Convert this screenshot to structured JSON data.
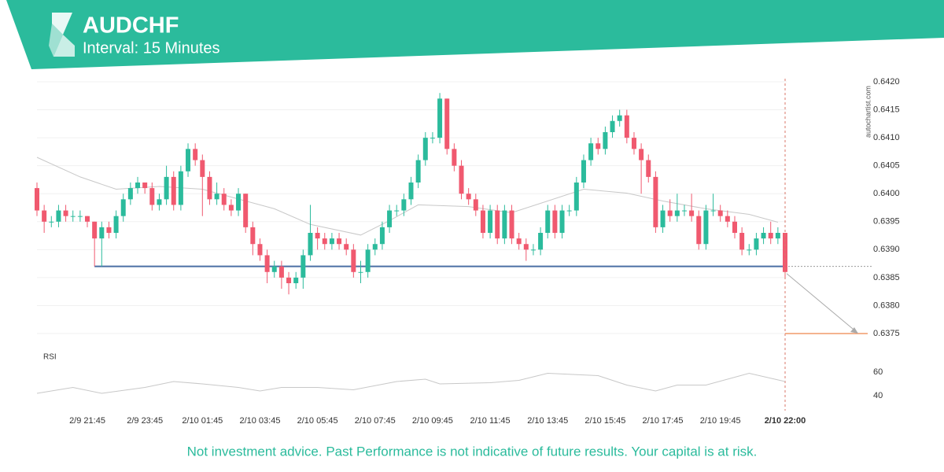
{
  "chart_data": {
    "type": "candlestick",
    "title": "AUDCHF",
    "subtitle": "Interval: 15 Minutes",
    "watermark": "autochartist.com",
    "footnote": "Not investment advice. Past Performance is not indicative of future results. Your capital is at risk.",
    "up_color": "#2bbb9c",
    "down_color": "#f0596f",
    "ylim": [
      0.6375,
      0.642
    ],
    "yticks": [
      {
        "value": 0.642,
        "label": "0.6420"
      },
      0.6415,
      {
        "value": 0.641,
        "label": "0.6410"
      },
      0.6405,
      {
        "value": 0.64,
        "label": "0.6400"
      },
      0.6395,
      {
        "value": 0.639,
        "label": "0.6390"
      },
      0.6385,
      {
        "value": 0.638,
        "label": "0.6380"
      },
      0.6375
    ],
    "grid": true,
    "categories": [
      null,
      null,
      null,
      null,
      null,
      null,
      null,
      "2/9 21:45",
      null,
      null,
      null,
      null,
      null,
      null,
      null,
      "2/9 23:45",
      null,
      null,
      null,
      null,
      null,
      null,
      null,
      "2/10 01:45",
      null,
      null,
      null,
      null,
      null,
      null,
      null,
      "2/10 03:45",
      null,
      null,
      null,
      null,
      null,
      null,
      null,
      "2/10 05:45",
      null,
      null,
      null,
      null,
      null,
      null,
      null,
      "2/10 07:45",
      null,
      null,
      null,
      null,
      null,
      null,
      null,
      "2/10 09:45",
      null,
      null,
      null,
      null,
      null,
      null,
      null,
      "2/10 11:45",
      null,
      null,
      null,
      null,
      null,
      null,
      null,
      "2/10 13:45",
      null,
      null,
      null,
      null,
      null,
      null,
      null,
      "2/10 15:45",
      null,
      null,
      null,
      null,
      null,
      null,
      null,
      "2/10 17:45",
      null,
      null,
      null,
      null,
      null,
      null,
      null,
      "2/10 19:45",
      null,
      null,
      null,
      null,
      null,
      null,
      null,
      null,
      "2/10 22:00"
    ],
    "candles": [
      [
        0.6401,
        0.6402,
        0.6396,
        0.6397
      ],
      [
        0.6397,
        0.6398,
        0.6393,
        0.6395
      ],
      [
        0.6395,
        0.6396,
        0.6394,
        0.6395
      ],
      [
        0.6395,
        0.6398,
        0.6394,
        0.6397
      ],
      [
        0.6397,
        0.6398,
        0.6395,
        0.6396
      ],
      [
        0.6396,
        0.6397,
        0.6395,
        0.6396
      ],
      [
        0.6396,
        0.6397,
        0.6395,
        0.6396
      ],
      [
        0.6396,
        0.6396,
        0.6394,
        0.6395
      ],
      [
        0.6395,
        0.6395,
        0.6387,
        0.6392
      ],
      [
        0.6392,
        0.6395,
        0.6387,
        0.6394
      ],
      [
        0.6394,
        0.6395,
        0.6392,
        0.6393
      ],
      [
        0.6393,
        0.6397,
        0.6392,
        0.6396
      ],
      [
        0.6396,
        0.64,
        0.6395,
        0.6399
      ],
      [
        0.6399,
        0.6402,
        0.6398,
        0.6401
      ],
      [
        0.6401,
        0.6403,
        0.64,
        0.6402
      ],
      [
        0.6402,
        0.6402,
        0.64,
        0.6401
      ],
      [
        0.6401,
        0.6402,
        0.6397,
        0.6398
      ],
      [
        0.6398,
        0.64,
        0.6397,
        0.6399
      ],
      [
        0.6399,
        0.6405,
        0.6398,
        0.6403
      ],
      [
        0.6403,
        0.6404,
        0.6397,
        0.6398
      ],
      [
        0.6398,
        0.6405,
        0.6397,
        0.6404
      ],
      [
        0.6404,
        0.6409,
        0.6403,
        0.6408
      ],
      [
        0.6408,
        0.6409,
        0.6405,
        0.6406
      ],
      [
        0.6406,
        0.6407,
        0.6396,
        0.6403
      ],
      [
        0.6403,
        0.6404,
        0.6398,
        0.6399
      ],
      [
        0.6399,
        0.6402,
        0.6398,
        0.64
      ],
      [
        0.64,
        0.6401,
        0.6397,
        0.6398
      ],
      [
        0.6398,
        0.6399,
        0.6396,
        0.6397
      ],
      [
        0.6397,
        0.6401,
        0.6396,
        0.64
      ],
      [
        0.64,
        0.64,
        0.6393,
        0.6394
      ],
      [
        0.6394,
        0.6395,
        0.6389,
        0.6391
      ],
      [
        0.6391,
        0.6392,
        0.6388,
        0.6389
      ],
      [
        0.6389,
        0.639,
        0.6384,
        0.6386
      ],
      [
        0.6386,
        0.6388,
        0.6385,
        0.6387
      ],
      [
        0.6387,
        0.6388,
        0.6383,
        0.6385
      ],
      [
        0.6385,
        0.6386,
        0.6382,
        0.6384
      ],
      [
        0.6384,
        0.6386,
        0.6383,
        0.6385
      ],
      [
        0.6385,
        0.639,
        0.6383,
        0.6389
      ],
      [
        0.6389,
        0.6398,
        0.6388,
        0.6393
      ],
      [
        0.6393,
        0.6394,
        0.639,
        0.6392
      ],
      [
        0.6392,
        0.6393,
        0.639,
        0.6391
      ],
      [
        0.6391,
        0.6393,
        0.639,
        0.6392
      ],
      [
        0.6392,
        0.6393,
        0.639,
        0.6391
      ],
      [
        0.6391,
        0.6392,
        0.6389,
        0.639
      ],
      [
        0.639,
        0.6391,
        0.6385,
        0.6386
      ],
      [
        0.6386,
        0.6388,
        0.6384,
        0.6386
      ],
      [
        0.6386,
        0.6391,
        0.6385,
        0.639
      ],
      [
        0.639,
        0.6392,
        0.6389,
        0.6391
      ],
      [
        0.6391,
        0.6395,
        0.639,
        0.6394
      ],
      [
        0.6394,
        0.6398,
        0.6393,
        0.6397
      ],
      [
        0.6397,
        0.6398,
        0.6396,
        0.6397
      ],
      [
        0.6397,
        0.64,
        0.6396,
        0.6399
      ],
      [
        0.6399,
        0.6403,
        0.6398,
        0.6402
      ],
      [
        0.6402,
        0.6407,
        0.6401,
        0.6406
      ],
      [
        0.6406,
        0.6411,
        0.6405,
        0.641
      ],
      [
        0.641,
        0.6411,
        0.6409,
        0.641
      ],
      [
        0.641,
        0.6418,
        0.6409,
        0.6417
      ],
      [
        0.6417,
        0.6417,
        0.6407,
        0.6408
      ],
      [
        0.6408,
        0.6409,
        0.6404,
        0.6405
      ],
      [
        0.6405,
        0.6406,
        0.6399,
        0.64
      ],
      [
        0.64,
        0.6401,
        0.6398,
        0.6399
      ],
      [
        0.6399,
        0.64,
        0.6396,
        0.6397
      ],
      [
        0.6397,
        0.6398,
        0.6392,
        0.6393
      ],
      [
        0.6393,
        0.6398,
        0.6392,
        0.6397
      ],
      [
        0.6397,
        0.6398,
        0.6391,
        0.6392
      ],
      [
        0.6392,
        0.6398,
        0.6391,
        0.6397
      ],
      [
        0.6397,
        0.6398,
        0.6391,
        0.6392
      ],
      [
        0.6392,
        0.6393,
        0.639,
        0.6391
      ],
      [
        0.6391,
        0.6392,
        0.6388,
        0.639
      ],
      [
        0.639,
        0.6391,
        0.6389,
        0.639
      ],
      [
        0.639,
        0.6394,
        0.6389,
        0.6393
      ],
      [
        0.6393,
        0.6398,
        0.6392,
        0.6397
      ],
      [
        0.6397,
        0.6398,
        0.6392,
        0.6393
      ],
      [
        0.6393,
        0.6398,
        0.6392,
        0.6397
      ],
      [
        0.6397,
        0.6398,
        0.6396,
        0.6397
      ],
      [
        0.6397,
        0.6403,
        0.6396,
        0.6402
      ],
      [
        0.6402,
        0.6407,
        0.6401,
        0.6406
      ],
      [
        0.6406,
        0.641,
        0.6405,
        0.6409
      ],
      [
        0.6409,
        0.641,
        0.6407,
        0.6408
      ],
      [
        0.6408,
        0.6412,
        0.6407,
        0.6411
      ],
      [
        0.6411,
        0.6414,
        0.641,
        0.6413
      ],
      [
        0.6413,
        0.6415,
        0.6412,
        0.6414
      ],
      [
        0.6414,
        0.6415,
        0.6409,
        0.641
      ],
      [
        0.641,
        0.6411,
        0.6407,
        0.6408
      ],
      [
        0.6408,
        0.6409,
        0.64,
        0.6406
      ],
      [
        0.6406,
        0.6407,
        0.6402,
        0.6403
      ],
      [
        0.6403,
        0.6404,
        0.6393,
        0.6394
      ],
      [
        0.6394,
        0.6398,
        0.6393,
        0.6397
      ],
      [
        0.6397,
        0.6399,
        0.6395,
        0.6396
      ],
      [
        0.6396,
        0.64,
        0.6395,
        0.6397
      ],
      [
        0.6397,
        0.6398,
        0.6396,
        0.6397
      ],
      [
        0.6397,
        0.64,
        0.6395,
        0.6396
      ],
      [
        0.6396,
        0.6397,
        0.639,
        0.6391
      ],
      [
        0.6391,
        0.6398,
        0.639,
        0.6397
      ],
      [
        0.6397,
        0.64,
        0.6396,
        0.6397
      ],
      [
        0.6397,
        0.6398,
        0.6395,
        0.6396
      ],
      [
        0.6396,
        0.6397,
        0.6394,
        0.6395
      ],
      [
        0.6395,
        0.6396,
        0.6392,
        0.6393
      ],
      [
        0.6393,
        0.6394,
        0.6389,
        0.639
      ],
      [
        0.639,
        0.6391,
        0.6389,
        0.639
      ],
      [
        0.639,
        0.6393,
        0.6389,
        0.6392
      ],
      [
        0.6392,
        0.6394,
        0.6391,
        0.6393
      ],
      [
        0.6393,
        0.6395,
        0.6391,
        0.6392
      ],
      [
        0.6392,
        0.6394,
        0.6391,
        0.6393
      ],
      [
        0.6393,
        0.6393,
        0.6385,
        0.6386
      ]
    ],
    "ma": {
      "color": "#c8c8c8",
      "x": [
        0,
        6,
        11,
        17,
        23,
        27,
        33,
        38,
        45,
        49,
        53,
        60,
        66,
        71,
        76,
        82,
        87,
        93,
        99,
        103
      ],
      "values": [
        0.64065,
        0.6403,
        0.64008,
        0.64013,
        0.64008,
        0.63994,
        0.63973,
        0.63945,
        0.63926,
        0.63952,
        0.6398,
        0.63977,
        0.63966,
        0.63987,
        0.64008,
        0.64001,
        0.63987,
        0.63973,
        0.63963,
        0.63949
      ]
    },
    "support": {
      "value": 0.6387,
      "from": 8,
      "color": "#4a6fa5"
    },
    "forecast": {
      "value": 0.6375,
      "color": "#f09a6a"
    },
    "rsi": {
      "label": "RSI",
      "color": "#c8c8c8",
      "ylim": [
        30,
        70
      ],
      "yticks": [
        40,
        60
      ],
      "x": [
        0,
        5,
        9,
        15,
        19,
        23,
        28,
        31,
        34,
        39,
        44,
        50,
        54,
        56,
        63,
        67,
        71,
        78,
        82,
        86,
        89,
        93,
        99,
        104
      ],
      "values": [
        42,
        47,
        42,
        47,
        52,
        50,
        47,
        44,
        47,
        47,
        45,
        52,
        54,
        50,
        51,
        53,
        59,
        57,
        49,
        44,
        49,
        49,
        59,
        52
      ]
    }
  }
}
